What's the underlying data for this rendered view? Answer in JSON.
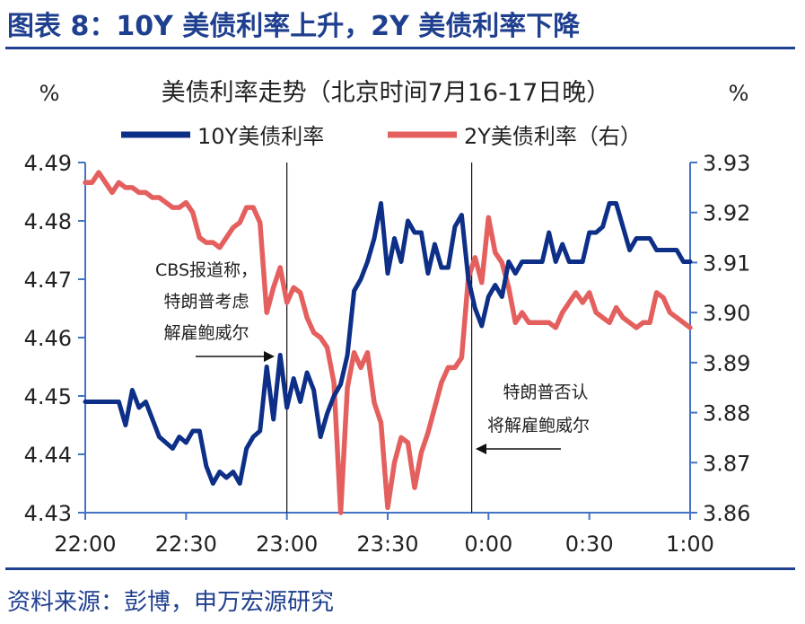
{
  "figure_title": "图表 8：10Y 美债利率上升，2Y 美债利率下降",
  "source": "资料来源：彭博，申万宏源研究",
  "colors": {
    "navy": "#1f3f8f",
    "series_10y": "#0d2f87",
    "series_2y": "#e4605f",
    "axis": "#4472c4"
  },
  "chart_data": {
    "type": "line",
    "title": "美债利率走势（北京时间7月16-17日晚）",
    "y_left_unit": "%",
    "y_right_unit": "%",
    "x_ticks": [
      "22:00",
      "22:30",
      "23:00",
      "23:30",
      "0:00",
      "0:30",
      "1:00"
    ],
    "x_range_minutes": [
      0,
      180
    ],
    "y_left": {
      "min": 4.43,
      "max": 4.49,
      "ticks": [
        "4.49",
        "4.48",
        "4.47",
        "4.46",
        "4.45",
        "4.44",
        "4.43"
      ]
    },
    "y_right": {
      "min": 3.86,
      "max": 3.93,
      "ticks": [
        "3.93",
        "3.92",
        "3.91",
        "3.90",
        "3.89",
        "3.88",
        "3.87",
        "3.86"
      ]
    },
    "series": [
      {
        "name": "10Y美债利率",
        "axis": "left",
        "color": "#0d2f87",
        "x": [
          0,
          4,
          8,
          10,
          12,
          14,
          16,
          18,
          20,
          22,
          24,
          26,
          28,
          30,
          32,
          34,
          36,
          38,
          40,
          42,
          44,
          46,
          48,
          50,
          52,
          54,
          56,
          58,
          60,
          62,
          64,
          66,
          68,
          70,
          72,
          74,
          76,
          78,
          80,
          82,
          84,
          86,
          88,
          90,
          92,
          94,
          96,
          98,
          100,
          102,
          104,
          106,
          108,
          110,
          112,
          114,
          116,
          118,
          120,
          122,
          124,
          126,
          128,
          130,
          132,
          134,
          136,
          138,
          140,
          142,
          144,
          146,
          148,
          150,
          152,
          154,
          156,
          158,
          160,
          162,
          164,
          166,
          168,
          170,
          172,
          174,
          176,
          178,
          180
        ],
        "values": [
          4.449,
          4.449,
          4.449,
          4.449,
          4.445,
          4.451,
          4.448,
          4.449,
          4.446,
          4.443,
          4.442,
          4.441,
          4.443,
          4.442,
          4.444,
          4.444,
          4.438,
          4.435,
          4.437,
          4.436,
          4.437,
          4.435,
          4.441,
          4.443,
          4.444,
          4.455,
          4.446,
          4.457,
          4.448,
          4.453,
          4.449,
          4.454,
          4.451,
          4.443,
          4.447,
          4.45,
          4.452,
          4.457,
          4.468,
          4.47,
          4.473,
          4.477,
          4.483,
          4.471,
          4.477,
          4.473,
          4.48,
          4.478,
          4.478,
          4.471,
          4.476,
          4.472,
          4.472,
          4.479,
          4.481,
          4.47,
          4.465,
          4.462,
          4.467,
          4.469,
          4.467,
          4.473,
          4.471,
          4.473,
          4.473,
          4.473,
          4.473,
          4.478,
          4.473,
          4.476,
          4.473,
          4.473,
          4.473,
          4.478,
          4.478,
          4.479,
          4.483,
          4.483,
          4.479,
          4.475,
          4.477,
          4.477,
          4.477,
          4.475,
          4.475,
          4.475,
          4.475,
          4.473,
          4.473
        ]
      },
      {
        "name": "2Y美债利率（右）",
        "axis": "right",
        "color": "#e4605f",
        "x": [
          0,
          2,
          4,
          6,
          8,
          10,
          12,
          14,
          16,
          18,
          20,
          22,
          24,
          26,
          28,
          30,
          32,
          34,
          36,
          38,
          40,
          42,
          44,
          46,
          48,
          50,
          52,
          54,
          56,
          58,
          60,
          62,
          64,
          66,
          68,
          70,
          72,
          74,
          76,
          78,
          80,
          82,
          84,
          86,
          88,
          90,
          92,
          94,
          96,
          98,
          100,
          102,
          104,
          106,
          108,
          110,
          112,
          114,
          116,
          118,
          120,
          122,
          124,
          126,
          128,
          130,
          132,
          134,
          136,
          138,
          140,
          142,
          144,
          146,
          148,
          150,
          152,
          154,
          156,
          158,
          160,
          162,
          164,
          166,
          168,
          170,
          172,
          174,
          176,
          178,
          180
        ],
        "values": [
          3.926,
          3.926,
          3.928,
          3.926,
          3.924,
          3.926,
          3.925,
          3.925,
          3.924,
          3.924,
          3.923,
          3.923,
          3.922,
          3.921,
          3.921,
          3.922,
          3.92,
          3.915,
          3.914,
          3.914,
          3.913,
          3.915,
          3.917,
          3.918,
          3.921,
          3.921,
          3.918,
          3.9,
          3.905,
          3.909,
          3.902,
          3.905,
          3.904,
          3.899,
          3.896,
          3.895,
          3.893,
          3.886,
          3.86,
          3.885,
          3.892,
          3.889,
          3.892,
          3.882,
          3.878,
          3.861,
          3.87,
          3.875,
          3.874,
          3.865,
          3.872,
          3.876,
          3.881,
          3.886,
          3.889,
          3.889,
          3.891,
          3.907,
          3.911,
          3.906,
          3.919,
          3.912,
          3.91,
          3.905,
          3.898,
          3.9,
          3.898,
          3.898,
          3.898,
          3.898,
          3.897,
          3.9,
          3.902,
          3.904,
          3.902,
          3.904,
          3.9,
          3.899,
          3.898,
          3.901,
          3.899,
          3.898,
          3.897,
          3.898,
          3.898,
          3.904,
          3.903,
          3.9,
          3.899,
          3.898,
          3.897
        ]
      }
    ],
    "vlines_minutes": [
      60,
      115
    ],
    "annotations": [
      {
        "id": "cbs",
        "lines": [
          "CBS报道称，",
          "特朗普考虑",
          "解雇鲍威尔"
        ]
      },
      {
        "id": "deny",
        "lines": [
          "特朗普否认",
          "将解雇鲍威尔"
        ]
      }
    ],
    "legend_placement": "top",
    "grid": false
  }
}
